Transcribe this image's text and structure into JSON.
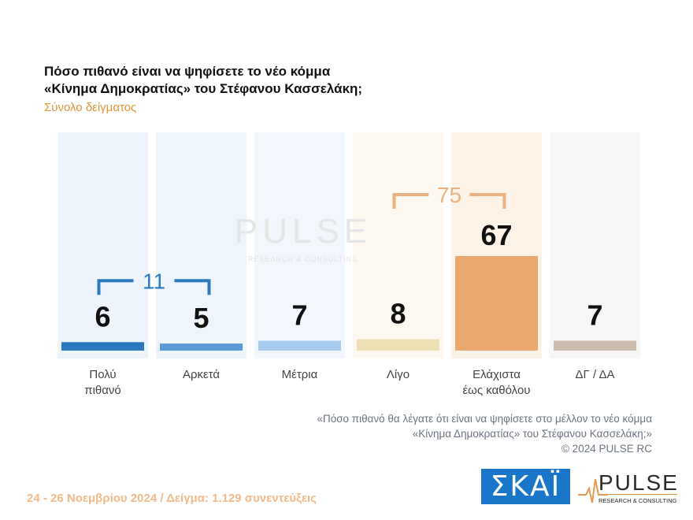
{
  "header": {
    "title_line1": "Πόσο πιθανό είναι να ψηφίσετε το νέο κόμμα",
    "title_line2": "«Κίνημα Δημοκρατίας» του Στέφανου Κασσελάκη;",
    "subtitle": "Σύνολο δείγματος"
  },
  "chart_data": {
    "type": "bar",
    "categories": [
      [
        "Πολύ",
        "πιθανό"
      ],
      [
        "Αρκετά"
      ],
      [
        "Μέτρια"
      ],
      [
        "Λίγο"
      ],
      [
        "Ελάχιστα",
        "έως καθόλου"
      ],
      [
        "ΔΓ / ΔΑ"
      ]
    ],
    "values": [
      6,
      5,
      7,
      8,
      67,
      7
    ],
    "colors": [
      "#2b78c0",
      "#5a9ad6",
      "#a9cdf0",
      "#efe0b4",
      "#eaa86f",
      "#cbbcae"
    ],
    "column_bg": [
      "#eef4fb",
      "#eef5fc",
      "#f1f7fd",
      "#fdf9f0",
      "#fdf2e6",
      "#f8f6f4"
    ],
    "groups": [
      {
        "label": "11",
        "from": 0,
        "to": 1,
        "color": "#2a7bc0"
      },
      {
        "label": "75",
        "from": 3,
        "to": 4,
        "color": "#eab27e"
      }
    ],
    "ylim": [
      0,
      100
    ]
  },
  "watermark": {
    "brand": "PULSE",
    "tagline": "RESEARCH & CONSULTING"
  },
  "note": {
    "line1": "«Πόσο πιθανό θα λέγατε ότι είναι να ψηφίσετε στο μέλλον το νέο κόμμα",
    "line2": "«Κίνημα Δημοκρατίας» του Στέφανου Κασσελάκη;»",
    "line3": "©  2024  PULSE RC"
  },
  "footer": {
    "date_sample": "24 - 26 Νοεμβρίου 2024  /  Δείγμα:  1.129 συνεντεύξεις",
    "skai_logo": "ΣΚΑΪ",
    "pulse_logo": "PULSE",
    "pulse_tagline": "RESEARCH & CONSULTING"
  }
}
